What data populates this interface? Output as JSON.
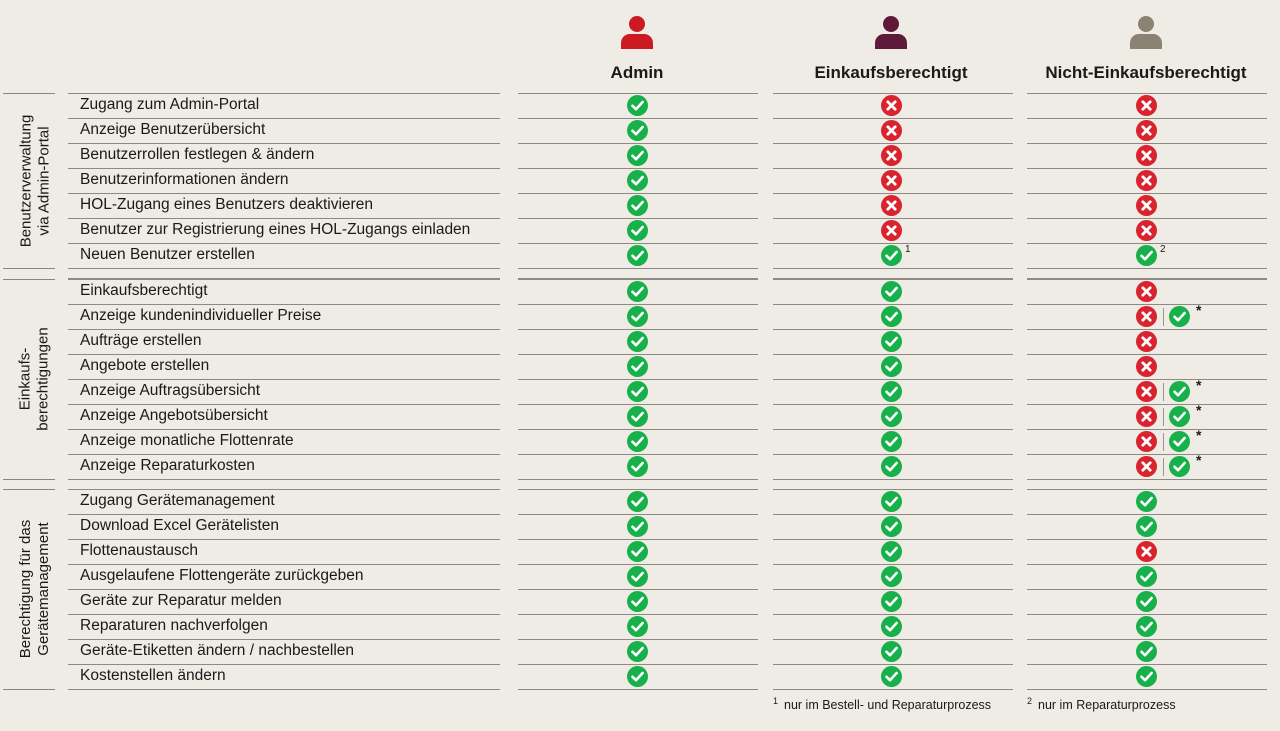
{
  "columns": [
    {
      "title": "Admin",
      "color": "#cc1a22",
      "icon": "person-icon"
    },
    {
      "title": "Einkaufsberechtigt",
      "color": "#5e1a38",
      "icon": "person-icon"
    },
    {
      "title": "Nicht-Einkaufsberechtigt",
      "color": "#8a8272",
      "icon": "person-icon"
    }
  ],
  "groups": [
    {
      "label_lines": [
        "Benutzerverwaltung",
        "via Admin-Portal"
      ],
      "rows": [
        {
          "label": "Zugang zum Admin-Portal",
          "cells": [
            [
              "ok"
            ],
            [
              "no"
            ],
            [
              "no"
            ]
          ]
        },
        {
          "label": "Anzeige Benutzerübersicht",
          "cells": [
            [
              "ok"
            ],
            [
              "no"
            ],
            [
              "no"
            ]
          ]
        },
        {
          "label": "Benutzerrollen festlegen & ändern",
          "cells": [
            [
              "ok"
            ],
            [
              "no"
            ],
            [
              "no"
            ]
          ]
        },
        {
          "label": "Benutzerinformationen ändern",
          "cells": [
            [
              "ok"
            ],
            [
              "no"
            ],
            [
              "no"
            ]
          ]
        },
        {
          "label": "HOL-Zugang eines Benutzers deaktivieren",
          "cells": [
            [
              "ok"
            ],
            [
              "no"
            ],
            [
              "no"
            ]
          ]
        },
        {
          "label": "Benutzer zur Registrierung eines HOL-Zugangs einladen",
          "cells": [
            [
              "ok"
            ],
            [
              "no"
            ],
            [
              "no"
            ]
          ]
        },
        {
          "label": "Neuen Benutzer erstellen",
          "cells": [
            [
              "ok"
            ],
            [
              "ok"
            ],
            [
              "ok"
            ]
          ],
          "notes": [
            "",
            "1",
            "2"
          ]
        }
      ]
    },
    {
      "label_lines": [
        "Einkaufs-",
        "berechtigungen"
      ],
      "rows": [
        {
          "label": "Einkaufsberechtigt",
          "cells": [
            [
              "ok"
            ],
            [
              "ok"
            ],
            [
              "no"
            ]
          ]
        },
        {
          "label": "Anzeige kundenindividueller Preise",
          "cells": [
            [
              "ok"
            ],
            [
              "ok"
            ],
            [
              "no",
              "ok"
            ]
          ],
          "notes": [
            "",
            "",
            "*"
          ]
        },
        {
          "label": "Aufträge erstellen",
          "cells": [
            [
              "ok"
            ],
            [
              "ok"
            ],
            [
              "no"
            ]
          ]
        },
        {
          "label": "Angebote erstellen",
          "cells": [
            [
              "ok"
            ],
            [
              "ok"
            ],
            [
              "no"
            ]
          ]
        },
        {
          "label": "Anzeige Auftragsübersicht",
          "cells": [
            [
              "ok"
            ],
            [
              "ok"
            ],
            [
              "no",
              "ok"
            ]
          ],
          "notes": [
            "",
            "",
            "*"
          ]
        },
        {
          "label": "Anzeige Angebotsübersicht",
          "cells": [
            [
              "ok"
            ],
            [
              "ok"
            ],
            [
              "no",
              "ok"
            ]
          ],
          "notes": [
            "",
            "",
            "*"
          ]
        },
        {
          "label": "Anzeige monatliche Flottenrate",
          "cells": [
            [
              "ok"
            ],
            [
              "ok"
            ],
            [
              "no",
              "ok"
            ]
          ],
          "notes": [
            "",
            "",
            "*"
          ]
        },
        {
          "label": "Anzeige Reparaturkosten",
          "cells": [
            [
              "ok"
            ],
            [
              "ok"
            ],
            [
              "no",
              "ok"
            ]
          ],
          "notes": [
            "",
            "",
            "*"
          ]
        }
      ]
    },
    {
      "label_lines": [
        "Berechtigung für das",
        "Gerätemanagement"
      ],
      "rows": [
        {
          "label": "Zugang Gerätemanagement",
          "cells": [
            [
              "ok"
            ],
            [
              "ok"
            ],
            [
              "ok"
            ]
          ]
        },
        {
          "label": "Download Excel Gerätelisten",
          "cells": [
            [
              "ok"
            ],
            [
              "ok"
            ],
            [
              "ok"
            ]
          ]
        },
        {
          "label": "Flottenaustausch",
          "cells": [
            [
              "ok"
            ],
            [
              "ok"
            ],
            [
              "no"
            ]
          ]
        },
        {
          "label": "Ausgelaufene Flottengeräte zurückgeben",
          "cells": [
            [
              "ok"
            ],
            [
              "ok"
            ],
            [
              "ok"
            ]
          ]
        },
        {
          "label": "Geräte zur Reparatur melden",
          "cells": [
            [
              "ok"
            ],
            [
              "ok"
            ],
            [
              "ok"
            ]
          ]
        },
        {
          "label": "Reparaturen nachverfolgen",
          "cells": [
            [
              "ok"
            ],
            [
              "ok"
            ],
            [
              "ok"
            ]
          ]
        },
        {
          "label": "Geräte-Etiketten ändern / nachbestellen",
          "cells": [
            [
              "ok"
            ],
            [
              "ok"
            ],
            [
              "ok"
            ]
          ]
        },
        {
          "label": "Kostenstellen ändern",
          "cells": [
            [
              "ok"
            ],
            [
              "ok"
            ],
            [
              "ok"
            ]
          ]
        }
      ]
    }
  ],
  "footnotes": [
    {
      "mark": "1",
      "text": "nur im Bestell- und Reparaturprozess"
    },
    {
      "mark": "2",
      "text": "nur im Reparaturprozess"
    }
  ],
  "colors": {
    "ok": "#17b04b",
    "no": "#d9232e",
    "background": "#efebe5"
  }
}
